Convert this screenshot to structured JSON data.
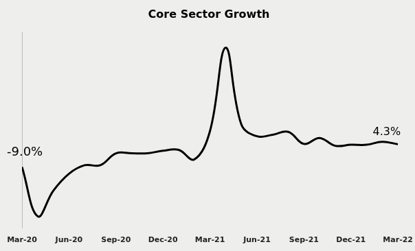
{
  "chart_data": {
    "type": "line",
    "title": "Core Sector Growth",
    "categories": [
      "Mar-20",
      null,
      null,
      "Jun-20",
      null,
      null,
      "Sep-20",
      null,
      null,
      "Dec-20",
      null,
      null,
      "Mar-21",
      null,
      null,
      "Jun-21",
      null,
      null,
      "Sep-21",
      null,
      null,
      "Dec-21",
      null,
      null,
      "Mar-22"
    ],
    "values": [
      -9.0,
      -38,
      -23,
      -13,
      -8,
      -8,
      -1,
      -1,
      -1,
      0.5,
      1,
      -4.6,
      12,
      61,
      16,
      9,
      9.9,
      11.6,
      4.5,
      8,
      3.4,
      4,
      4,
      5.8,
      4.3
    ],
    "color": "#000000",
    "ylim": [
      -45,
      70
    ],
    "grid": false,
    "tick_labels": "x",
    "annotations": [
      {
        "category": "Mar-20",
        "label": "-9.0%"
      },
      {
        "category": "Mar-22",
        "label": "4.3%"
      }
    ]
  }
}
